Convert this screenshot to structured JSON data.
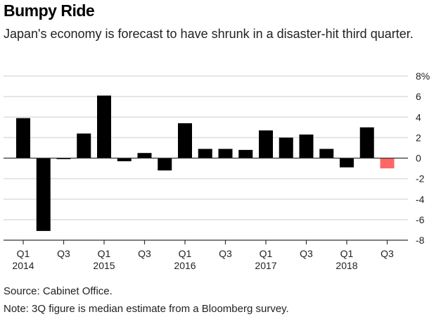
{
  "title": "Bumpy Ride",
  "subtitle": "Japan's economy is forecast to have shrunk in a disaster-hit third quarter.",
  "footer": {
    "source": "Source: Cabinet Office.",
    "note": "Note: 3Q figure is median estimate from a Bloomberg survey."
  },
  "colors": {
    "bar": "#000000",
    "estimate_bar": "#ff6666",
    "grid": "#dddddd",
    "zero_line": "#333333"
  },
  "chart_data": {
    "type": "bar",
    "title": "Bumpy Ride",
    "subtitle": "Japan's economy is forecast to have shrunk in a disaster-hit third quarter.",
    "xlabel": "",
    "ylabel": "",
    "y_unit": "%",
    "ylim": [
      -8,
      8
    ],
    "yticks": [
      8,
      6,
      4,
      2,
      0,
      -2,
      -4,
      -6,
      -8
    ],
    "ytick_labels": [
      "8%",
      "6",
      "4",
      "2",
      "0",
      "-2",
      "-4",
      "-6",
      "-8"
    ],
    "grid": true,
    "y_axis_side": "right",
    "categories": [
      "Q1 2014",
      "Q2 2014",
      "Q3 2014",
      "Q4 2014",
      "Q1 2015",
      "Q2 2015",
      "Q3 2015",
      "Q4 2015",
      "Q1 2016",
      "Q2 2016",
      "Q3 2016",
      "Q4 2016",
      "Q1 2017",
      "Q2 2017",
      "Q3 2017",
      "Q4 2017",
      "Q1 2018",
      "Q2 2018",
      "Q3 2018"
    ],
    "values": [
      3.9,
      -7.1,
      -0.1,
      2.4,
      6.1,
      -0.3,
      0.5,
      -1.2,
      3.4,
      0.9,
      0.9,
      0.8,
      2.7,
      2.0,
      2.3,
      0.9,
      -0.9,
      3.0,
      -1.0
    ],
    "estimate_flags": [
      false,
      false,
      false,
      false,
      false,
      false,
      false,
      false,
      false,
      false,
      false,
      false,
      false,
      false,
      false,
      false,
      false,
      false,
      true
    ],
    "xticks": [
      {
        "index": 0,
        "line1": "Q1",
        "line2": "2014"
      },
      {
        "index": 2,
        "line1": "Q3",
        "line2": ""
      },
      {
        "index": 4,
        "line1": "Q1",
        "line2": "2015"
      },
      {
        "index": 6,
        "line1": "Q3",
        "line2": ""
      },
      {
        "index": 8,
        "line1": "Q1",
        "line2": "2016"
      },
      {
        "index": 10,
        "line1": "Q3",
        "line2": ""
      },
      {
        "index": 12,
        "line1": "Q1",
        "line2": "2017"
      },
      {
        "index": 14,
        "line1": "Q3",
        "line2": ""
      },
      {
        "index": 16,
        "line1": "Q1",
        "line2": "2018"
      },
      {
        "index": 18,
        "line1": "Q3",
        "line2": ""
      }
    ]
  }
}
